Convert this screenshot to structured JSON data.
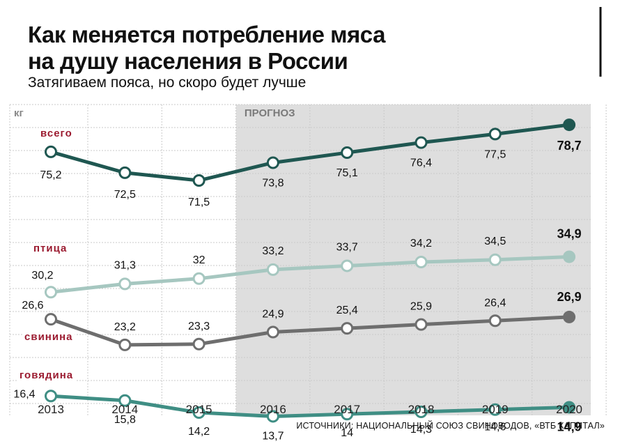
{
  "header": {
    "title_line1": "Как меняется потребление мяса",
    "title_line2": "на душу населения в России",
    "subtitle": "Затягиваем пояса, но скоро будет лучше"
  },
  "source": "ИСТОЧНИКИ: НАЦИОНАЛЬНЫЙ СОЮЗ СВИНОВОДОВ, «ВТБ КАПИТАЛ»",
  "chart_data": {
    "type": "line",
    "unit_label": "кг",
    "forecast_label": "ПРОГНОЗ",
    "forecast_from": "2016",
    "x": [
      "2013",
      "2014",
      "2015",
      "2016",
      "2017",
      "2018",
      "2019",
      "2020"
    ],
    "series": [
      {
        "name": "всего",
        "color": "#1f5751",
        "values": [
          75.2,
          72.5,
          71.5,
          73.8,
          75.1,
          76.4,
          77.5,
          78.7
        ],
        "labels": [
          "75,2",
          "72,5",
          "71,5",
          "73,8",
          "75,1",
          "76,4",
          "77,5",
          "78,7"
        ]
      },
      {
        "name": "птица",
        "color": "#a6c7c0",
        "values": [
          30.2,
          31.3,
          32,
          33.2,
          33.7,
          34.2,
          34.5,
          34.9
        ],
        "labels": [
          "30,2",
          "31,3",
          "32",
          "33,2",
          "33,7",
          "34,2",
          "34,5",
          "34,9"
        ]
      },
      {
        "name": "свинина",
        "color": "#6e6e6e",
        "values": [
          26.6,
          23.2,
          23.3,
          24.9,
          25.4,
          25.9,
          26.4,
          26.9
        ],
        "labels": [
          "26,6",
          "23,2",
          "23,3",
          "24,9",
          "25,4",
          "25,9",
          "26,4",
          "26,9"
        ]
      },
      {
        "name": "говядина",
        "color": "#3f8e84",
        "values": [
          16.4,
          15.8,
          14.2,
          13.7,
          14,
          14.3,
          14.6,
          14.9
        ],
        "labels": [
          "16,4",
          "15,8",
          "14,2",
          "13,7",
          "14",
          "14,3",
          "14,6",
          "14,9"
        ]
      }
    ],
    "legend_color": "#9b1b30",
    "grid": true
  }
}
